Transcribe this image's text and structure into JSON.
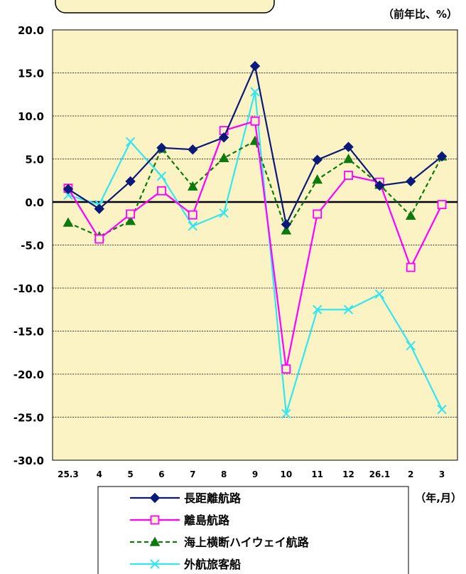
{
  "chart_data": {
    "type": "line",
    "unit_label": "（前年比、%）",
    "x_axis_unit_label": "（年,月）",
    "categories": [
      "25.3",
      "4",
      "5",
      "6",
      "7",
      "8",
      "9",
      "10",
      "11",
      "12",
      "26.1",
      "2",
      "3"
    ],
    "ylim": [
      -30.0,
      20.0
    ],
    "y_ticks": [
      "20.0",
      "15.0",
      "10.0",
      "5.0",
      "0.0",
      "-5.0",
      "-10.0",
      "-15.0",
      "-20.0",
      "-25.0",
      "-30.0"
    ],
    "y_tick_values": [
      20,
      15,
      10,
      5,
      0,
      -5,
      -10,
      -15,
      -20,
      -25,
      -30
    ],
    "grid": true,
    "plot_background": "#fbf3c4",
    "legend_position": "bottom",
    "series": [
      {
        "name": "長距離航路",
        "color": "#0a1a78",
        "marker": "diamond",
        "dash": "solid",
        "values": [
          1.5,
          -0.8,
          2.4,
          6.3,
          6.1,
          7.5,
          15.8,
          -2.6,
          4.9,
          6.4,
          1.9,
          2.4,
          5.3
        ]
      },
      {
        "name": "離島航路",
        "color": "#ff00ff",
        "marker": "square-open",
        "dash": "solid",
        "values": [
          1.6,
          -4.3,
          -1.4,
          1.3,
          -1.5,
          8.3,
          9.4,
          -19.4,
          -1.4,
          3.1,
          2.3,
          -7.6,
          -0.3
        ]
      },
      {
        "name": "海上横断ハイウェイ航路",
        "color": "#0d7a0d",
        "marker": "triangle",
        "dash": "dashed",
        "values": [
          -2.4,
          -4.0,
          -2.2,
          6.2,
          1.8,
          5.1,
          7.1,
          -3.3,
          2.6,
          5.0,
          2.0,
          -1.6,
          5.3
        ]
      },
      {
        "name": "外航旅客船",
        "color": "#33e6f0",
        "marker": "x",
        "dash": "solid",
        "values": [
          0.8,
          -0.3,
          7.0,
          3.0,
          -2.8,
          -1.3,
          12.8,
          -24.6,
          -12.5,
          -12.5,
          -10.7,
          -16.7,
          -24.1
        ]
      }
    ]
  }
}
